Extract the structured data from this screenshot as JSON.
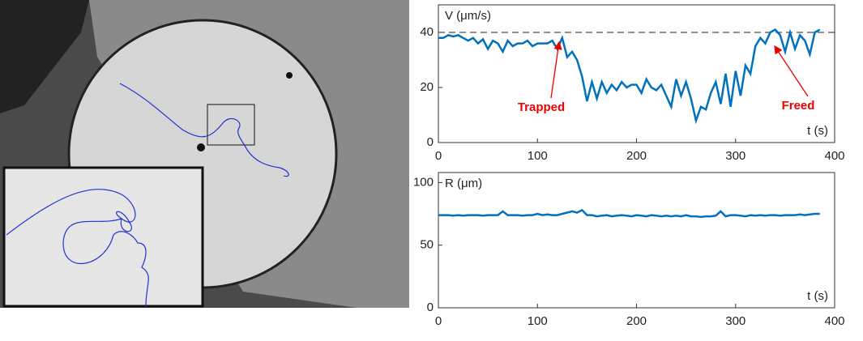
{
  "chart_data": [
    {
      "type": "line",
      "axis_label": "V (μm/s)",
      "x_label": "t (s)",
      "xlim": [
        0,
        400
      ],
      "xticks": [
        0,
        100,
        200,
        300,
        400
      ],
      "ylim": [
        0,
        50
      ],
      "yticks": [
        0,
        20,
        40
      ],
      "hline": 40,
      "annotations": [
        "Trapped",
        "Freed"
      ],
      "x": [
        0,
        5,
        10,
        15,
        20,
        25,
        30,
        35,
        40,
        45,
        50,
        55,
        60,
        65,
        70,
        75,
        80,
        85,
        90,
        95,
        100,
        105,
        110,
        115,
        120,
        125,
        130,
        135,
        140,
        145,
        150,
        155,
        160,
        165,
        170,
        175,
        180,
        185,
        190,
        195,
        200,
        205,
        210,
        215,
        220,
        225,
        230,
        235,
        240,
        245,
        250,
        255,
        260,
        265,
        270,
        275,
        280,
        285,
        290,
        295,
        300,
        305,
        310,
        315,
        320,
        325,
        330,
        335,
        340,
        345,
        350,
        355,
        360,
        365,
        370,
        375,
        380,
        385
      ],
      "series": [
        {
          "color": "#0072bd",
          "values": [
            38,
            38,
            39,
            38.5,
            39,
            38,
            37,
            38,
            36,
            37.5,
            34,
            37,
            36,
            33,
            37,
            35,
            36,
            36,
            37,
            35,
            36,
            36,
            36,
            37,
            34,
            38,
            31,
            33,
            30,
            24,
            15,
            22,
            16,
            22,
            18,
            21,
            19,
            22,
            20,
            21,
            21,
            18,
            23,
            20,
            19,
            21,
            17,
            13,
            23,
            17,
            22,
            16,
            8,
            13,
            12,
            18,
            22,
            14,
            25,
            13,
            26,
            17,
            28,
            25,
            35,
            38,
            36,
            40,
            41,
            39,
            33,
            40,
            34,
            39,
            37,
            32,
            40,
            41
          ]
        }
      ]
    },
    {
      "type": "line",
      "axis_label": "R (μm)",
      "x_label": "t (s)",
      "xlim": [
        0,
        400
      ],
      "xticks": [
        0,
        100,
        200,
        300,
        400
      ],
      "ylim": [
        0,
        108
      ],
      "yticks": [
        0,
        50,
        100
      ],
      "x": [
        0,
        5,
        10,
        15,
        20,
        25,
        30,
        35,
        40,
        45,
        50,
        55,
        60,
        65,
        70,
        75,
        80,
        85,
        90,
        95,
        100,
        105,
        110,
        115,
        120,
        125,
        130,
        135,
        140,
        145,
        150,
        155,
        160,
        165,
        170,
        175,
        180,
        185,
        190,
        195,
        200,
        205,
        210,
        215,
        220,
        225,
        230,
        235,
        240,
        245,
        250,
        255,
        260,
        265,
        270,
        275,
        280,
        285,
        290,
        295,
        300,
        305,
        310,
        315,
        320,
        325,
        330,
        335,
        340,
        345,
        350,
        355,
        360,
        365,
        370,
        375,
        380,
        385
      ],
      "series": [
        {
          "color": "#0072bd",
          "values": [
            74,
            74,
            74,
            73.5,
            74,
            73.5,
            74,
            74,
            74,
            73.5,
            74,
            74,
            74,
            77,
            74,
            74,
            74,
            73.5,
            74,
            74,
            75,
            74,
            74.5,
            74,
            74,
            75,
            76,
            77,
            76,
            78,
            74,
            74,
            73,
            73.5,
            74,
            73,
            73.5,
            74,
            73.5,
            73,
            74,
            73.5,
            73,
            74,
            73.5,
            73,
            73.5,
            73,
            73.5,
            73,
            74,
            73,
            73,
            72.5,
            73,
            73,
            73.5,
            77,
            73,
            74,
            74,
            73.5,
            73,
            74,
            73.5,
            74,
            73.5,
            74,
            74,
            73.5,
            74,
            74,
            74,
            74.5,
            74,
            74.5,
            75,
            75
          ]
        }
      ]
    }
  ]
}
